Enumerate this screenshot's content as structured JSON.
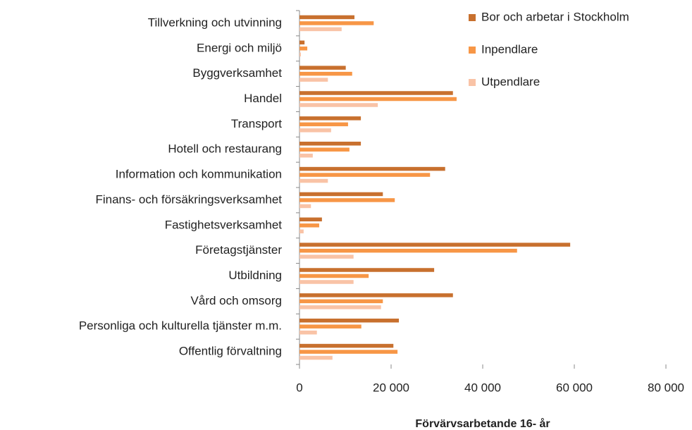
{
  "chart_data": {
    "type": "barh",
    "xlabel": "Förvärvsarbetande 16- år",
    "categories": [
      "Tillverkning och utvinning",
      "Energi och miljö",
      "Byggverksamhet",
      "Handel",
      "Transport",
      "Hotell och restaurang",
      "Information och kommunikation",
      "Finans- och försäkringsverksamhet",
      "Fastighetsverksamhet",
      "Företagstjänster",
      "Utbildning",
      "Vård och omsorg",
      "Personliga och kulturella tjänster m.m.",
      "Offentlig förvaltning"
    ],
    "series": [
      {
        "name": "Bor och arbetar i Stockholm",
        "color": "#c8702e",
        "values": [
          12000,
          1100,
          10100,
          33500,
          13400,
          13400,
          31800,
          18200,
          4900,
          59100,
          29400,
          33500,
          21700,
          20500
        ]
      },
      {
        "name": "Inpendlare",
        "color": "#f79646",
        "values": [
          16200,
          1700,
          11500,
          34300,
          10600,
          10900,
          28500,
          20800,
          4300,
          47500,
          15100,
          18200,
          13500,
          21400
        ]
      },
      {
        "name": "Utpendlare",
        "color": "#f9c3a6",
        "values": [
          9200,
          300,
          6200,
          17100,
          6900,
          2900,
          6200,
          2500,
          900,
          11800,
          11800,
          17800,
          3800,
          7200
        ]
      }
    ],
    "xlim": [
      0,
      80000
    ],
    "xticks": [
      0,
      {
        "value": 20000,
        "label": "20 000"
      },
      {
        "value": 40000,
        "label": "40 000"
      },
      {
        "value": 60000,
        "label": "60 000"
      },
      {
        "value": 80000,
        "label": "80 000"
      }
    ],
    "legend": "right"
  }
}
